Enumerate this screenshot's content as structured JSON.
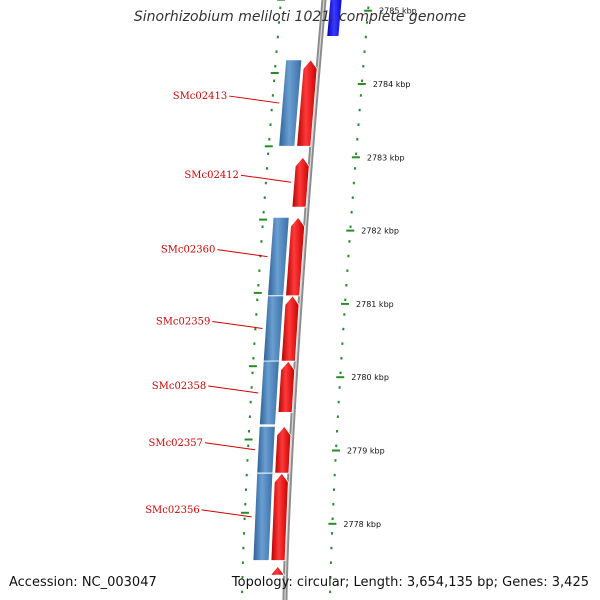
{
  "title": "Sinorhizobium meliloti 1021, complete genome",
  "footer": {
    "accession": "Accession: NC_003047",
    "topology": "Topology: circular; Length: 3,654,135 bp; Genes: 3,425"
  },
  "colors": {
    "forward_cds": "#ee1111",
    "reverse_cds": "#4a7fb5",
    "other_feature": "#1a1aee",
    "backbone": "#8c8c8c",
    "tick": "#2a8a2a",
    "gene_label": "#d40000"
  },
  "scale": {
    "unit": "kbp",
    "ticks": [
      {
        "kbp": 2785,
        "label": "2785 kbp"
      },
      {
        "kbp": 2784,
        "label": "2784 kbp"
      },
      {
        "kbp": 2783,
        "label": "2783 kbp"
      },
      {
        "kbp": 2782,
        "label": "2782 kbp"
      },
      {
        "kbp": 2781,
        "label": "2781 kbp"
      },
      {
        "kbp": 2780,
        "label": "2780 kbp"
      },
      {
        "kbp": 2779,
        "label": "2779 kbp"
      },
      {
        "kbp": 2778,
        "label": "2778 kbp"
      }
    ]
  },
  "genes": [
    {
      "name": "SMc02413",
      "strand": "reverse",
      "start_kbp": 2784.33,
      "end_kbp": 2783.15
    },
    {
      "name": "SMc02412",
      "strand": "forward",
      "start_kbp": 2783.0,
      "end_kbp": 2782.32
    },
    {
      "name": "SMc02360",
      "strand": "reverse",
      "start_kbp": 2782.18,
      "end_kbp": 2781.11
    },
    {
      "name": "SMc02359",
      "strand": "reverse",
      "start_kbp": 2781.11,
      "end_kbp": 2780.22
    },
    {
      "name": "SMc02358",
      "strand": "reverse",
      "start_kbp": 2780.22,
      "end_kbp": 2779.35
    },
    {
      "name": "SMc02357",
      "strand": "reverse",
      "start_kbp": 2779.33,
      "end_kbp": 2778.69
    },
    {
      "name": "SMc02356",
      "strand": "reverse",
      "start_kbp": 2778.69,
      "end_kbp": 2777.5
    }
  ],
  "forward_cds": [
    {
      "start_kbp": 2783.15,
      "end_kbp": 2784.33
    },
    {
      "start_kbp": 2782.32,
      "end_kbp": 2783.0
    },
    {
      "start_kbp": 2781.11,
      "end_kbp": 2782.18
    },
    {
      "start_kbp": 2780.22,
      "end_kbp": 2781.11
    },
    {
      "start_kbp": 2779.52,
      "end_kbp": 2780.22
    },
    {
      "start_kbp": 2778.69,
      "end_kbp": 2779.33
    },
    {
      "start_kbp": 2777.5,
      "end_kbp": 2778.69
    },
    {
      "start_kbp": 2777.3,
      "end_kbp": 2777.42
    }
  ],
  "other_features": [
    {
      "strand": "forward",
      "start_kbp": 2784.65,
      "end_kbp": 2785.3
    }
  ]
}
